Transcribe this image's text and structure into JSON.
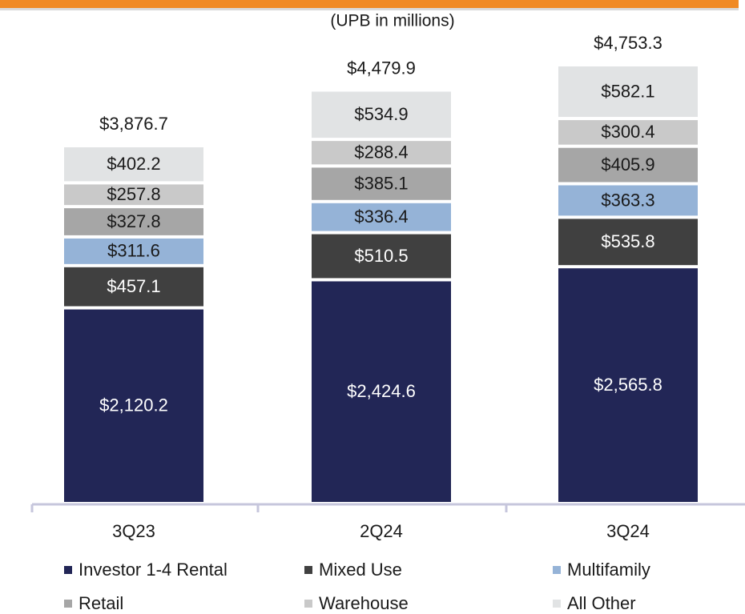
{
  "chart_data": {
    "type": "stacked_bar",
    "subtitle": "(UPB in millions)",
    "categories": [
      "3Q23",
      "2Q24",
      "3Q24"
    ],
    "series": [
      {
        "name": "Investor 1-4 Rental",
        "color": "#222656",
        "values": [
          2120.2,
          2424.6,
          2565.8
        ],
        "value_labels": [
          "$2,120.2",
          "$2,424.6",
          "$2,565.8"
        ]
      },
      {
        "name": "Mixed Use",
        "color": "#404040",
        "values": [
          457.1,
          510.5,
          535.8
        ],
        "value_labels": [
          "$457.1",
          "$510.5",
          "$535.8"
        ]
      },
      {
        "name": "Multifamily",
        "color": "#95b3d7",
        "values": [
          311.6,
          336.4,
          363.3
        ],
        "value_labels": [
          "$311.6",
          "$336.4",
          "$363.3"
        ]
      },
      {
        "name": "Retail",
        "color": "#a6a6a6",
        "values": [
          327.8,
          385.1,
          405.9
        ],
        "value_labels": [
          "$327.8",
          "$385.1",
          "$405.9"
        ]
      },
      {
        "name": "Warehouse",
        "color": "#c9c9c9",
        "values": [
          257.8,
          288.4,
          300.4
        ],
        "value_labels": [
          "$257.8",
          "$288.4",
          "$300.4"
        ]
      },
      {
        "name": "All Other",
        "color": "#e1e3e4",
        "values": [
          402.2,
          534.9,
          582.1
        ],
        "value_labels": [
          "$402.2",
          "$534.9",
          "$582.1"
        ]
      }
    ],
    "totals": [
      3876.7,
      4479.9,
      4753.3
    ],
    "total_labels": [
      "$3,876.7",
      "$4,479.9",
      "$4,753.3"
    ]
  }
}
